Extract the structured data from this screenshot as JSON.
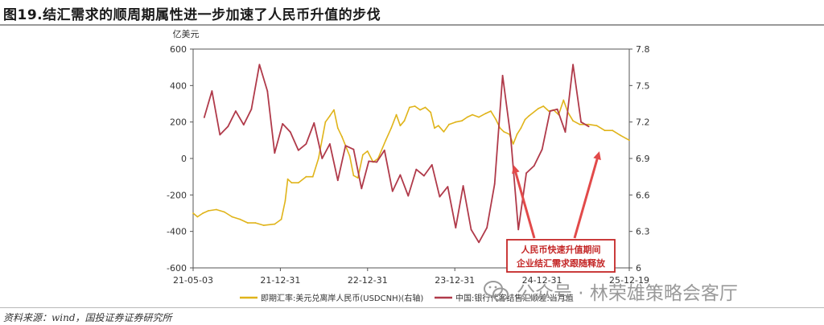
{
  "title": "图19.结汇需求的顺周期属性进一步加速了人民币升值的步伐",
  "source": "资料来源：wind，国投证券证券研究所",
  "watermark": "公众号 · 林荣雄策略会客厅",
  "chart_data": {
    "type": "line",
    "left_unit": "亿美元",
    "ylim_left": [
      -600,
      600
    ],
    "ylim_right": [
      6.0,
      7.8
    ],
    "left_ticks": [
      "600",
      "400",
      "200",
      "0",
      "-200",
      "-400",
      "-600"
    ],
    "right_ticks": [
      "7.8",
      "7.5",
      "7.2",
      "6.9",
      "6.6",
      "6.3",
      "6"
    ],
    "x_ticks": [
      "21-05-03",
      "21-12-31",
      "22-12-31",
      "23-12-31",
      "24-12-31",
      "25-12-19"
    ],
    "series": [
      {
        "name": "即期汇率:美元兑离岸人民币(USDCNH)(右轴)",
        "axis": "right",
        "color": "#e0b41a",
        "points": [
          [
            "2021-05-03",
            6.45
          ],
          [
            "2021-05-20",
            6.42
          ],
          [
            "2021-06-10",
            6.45
          ],
          [
            "2021-07-01",
            6.47
          ],
          [
            "2021-08-01",
            6.48
          ],
          [
            "2021-09-01",
            6.46
          ],
          [
            "2021-10-01",
            6.42
          ],
          [
            "2021-11-01",
            6.4
          ],
          [
            "2021-12-01",
            6.37
          ],
          [
            "2021-12-31",
            6.37
          ],
          [
            "2022-02-01",
            6.35
          ],
          [
            "2022-03-15",
            6.36
          ],
          [
            "2022-04-10",
            6.4
          ],
          [
            "2022-04-25",
            6.55
          ],
          [
            "2022-05-05",
            6.73
          ],
          [
            "2022-05-20",
            6.7
          ],
          [
            "2022-06-15",
            6.7
          ],
          [
            "2022-07-15",
            6.75
          ],
          [
            "2022-08-10",
            6.75
          ],
          [
            "2022-09-01",
            6.9
          ],
          [
            "2022-09-28",
            7.2
          ],
          [
            "2022-10-15",
            7.25
          ],
          [
            "2022-10-31",
            7.3
          ],
          [
            "2022-11-15",
            7.15
          ],
          [
            "2022-12-01",
            7.08
          ],
          [
            "2022-12-31",
            6.92
          ],
          [
            "2023-01-15",
            6.76
          ],
          [
            "2023-02-01",
            6.74
          ],
          [
            "2023-02-20",
            6.93
          ],
          [
            "2023-03-10",
            6.96
          ],
          [
            "2023-04-01",
            6.87
          ],
          [
            "2023-04-20",
            6.9
          ],
          [
            "2023-05-20",
            7.05
          ],
          [
            "2023-06-10",
            7.15
          ],
          [
            "2023-06-30",
            7.26
          ],
          [
            "2023-07-15",
            7.17
          ],
          [
            "2023-07-31",
            7.21
          ],
          [
            "2023-08-20",
            7.32
          ],
          [
            "2023-09-10",
            7.33
          ],
          [
            "2023-09-30",
            7.3
          ],
          [
            "2023-10-20",
            7.32
          ],
          [
            "2023-11-10",
            7.28
          ],
          [
            "2023-11-25",
            7.15
          ],
          [
            "2023-12-10",
            7.17
          ],
          [
            "2023-12-31",
            7.12
          ],
          [
            "2024-01-20",
            7.18
          ],
          [
            "2024-02-15",
            7.2
          ],
          [
            "2024-03-10",
            7.21
          ],
          [
            "2024-03-31",
            7.24
          ],
          [
            "2024-04-20",
            7.26
          ],
          [
            "2024-05-15",
            7.24
          ],
          [
            "2024-06-10",
            7.27
          ],
          [
            "2024-06-30",
            7.29
          ],
          [
            "2024-07-20",
            7.22
          ],
          [
            "2024-08-05",
            7.15
          ],
          [
            "2024-08-20",
            7.12
          ],
          [
            "2024-09-10",
            7.1
          ],
          [
            "2024-09-25",
            7.02
          ],
          [
            "2024-10-10",
            7.1
          ],
          [
            "2024-10-25",
            7.15
          ],
          [
            "2024-11-10",
            7.22
          ],
          [
            "2024-11-25",
            7.25
          ],
          [
            "2024-12-31",
            7.31
          ],
          [
            "2025-01-20",
            7.33
          ],
          [
            "2025-02-10",
            7.29
          ],
          [
            "2025-02-28",
            7.3
          ],
          [
            "2025-03-20",
            7.26
          ],
          [
            "2025-04-08",
            7.38
          ],
          [
            "2025-04-25",
            7.28
          ],
          [
            "2025-05-15",
            7.21
          ],
          [
            "2025-06-10",
            7.18
          ],
          [
            "2025-07-15",
            7.18
          ],
          [
            "2025-08-15",
            7.17
          ],
          [
            "2025-09-15",
            7.13
          ],
          [
            "2025-10-15",
            7.13
          ],
          [
            "2025-11-15",
            7.09
          ],
          [
            "2025-12-19",
            7.05
          ]
        ]
      },
      {
        "name": "中国:银行代客结售汇顺差:当月值",
        "axis": "left",
        "color": "#b03a4a",
        "points": [
          [
            "2021-06-15",
            225
          ],
          [
            "2021-07-15",
            370
          ],
          [
            "2021-08-15",
            130
          ],
          [
            "2021-09-15",
            175
          ],
          [
            "2021-10-15",
            260
          ],
          [
            "2021-11-15",
            185
          ],
          [
            "2021-12-15",
            270
          ],
          [
            "2022-01-15",
            515
          ],
          [
            "2022-02-15",
            370
          ],
          [
            "2022-03-15",
            30
          ],
          [
            "2022-04-15",
            190
          ],
          [
            "2022-05-15",
            145
          ],
          [
            "2022-06-15",
            45
          ],
          [
            "2022-07-15",
            80
          ],
          [
            "2022-08-15",
            195
          ],
          [
            "2022-09-15",
            0
          ],
          [
            "2022-10-15",
            80
          ],
          [
            "2022-11-15",
            -120
          ],
          [
            "2022-12-15",
            70
          ],
          [
            "2023-01-15",
            50
          ],
          [
            "2023-02-15",
            -165
          ],
          [
            "2023-03-15",
            -15
          ],
          [
            "2023-04-15",
            -20
          ],
          [
            "2023-05-15",
            45
          ],
          [
            "2023-06-15",
            -180
          ],
          [
            "2023-07-15",
            -90
          ],
          [
            "2023-08-15",
            -205
          ],
          [
            "2023-09-15",
            -60
          ],
          [
            "2023-10-15",
            -95
          ],
          [
            "2023-11-15",
            -35
          ],
          [
            "2023-12-15",
            -210
          ],
          [
            "2024-01-15",
            -155
          ],
          [
            "2024-02-15",
            -380
          ],
          [
            "2024-03-15",
            -150
          ],
          [
            "2024-04-15",
            -390
          ],
          [
            "2024-05-15",
            -460
          ],
          [
            "2024-06-15",
            -380
          ],
          [
            "2024-07-15",
            -140
          ],
          [
            "2024-08-15",
            455
          ],
          [
            "2024-09-15",
            120
          ],
          [
            "2024-10-15",
            -390
          ],
          [
            "2024-11-15",
            -80
          ],
          [
            "2024-12-15",
            -40
          ],
          [
            "2025-01-15",
            50
          ],
          [
            "2025-02-15",
            260
          ],
          [
            "2025-03-15",
            270
          ],
          [
            "2025-04-15",
            145
          ],
          [
            "2025-05-15",
            515
          ],
          [
            "2025-06-15",
            200
          ],
          [
            "2025-07-15",
            175
          ]
        ]
      }
    ],
    "annotation": {
      "line1": "人民币快速升值期间",
      "line2": "企业结汇需求跟随释放",
      "text_color": "#c42727",
      "border_color": "#c42727",
      "arrow_color": "#e24a4a"
    }
  }
}
